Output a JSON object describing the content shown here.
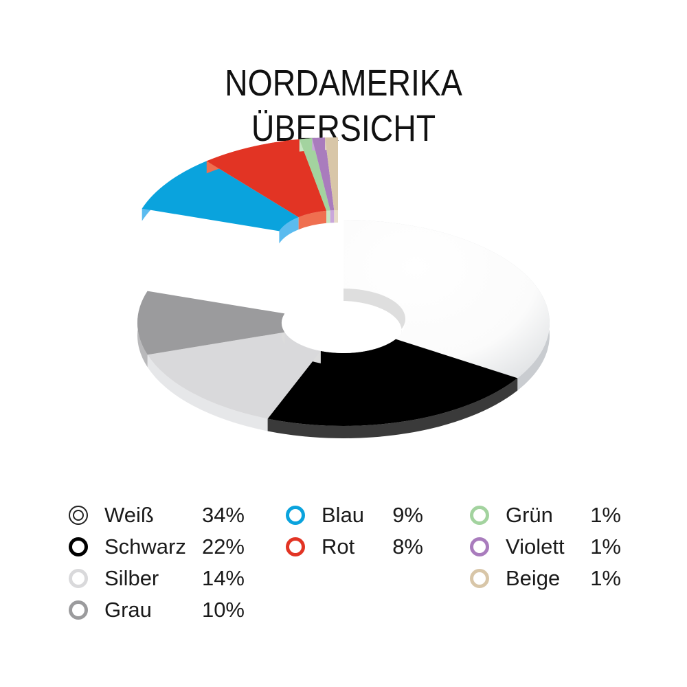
{
  "title": {
    "line1": "NORDAMERIKA",
    "line2": "ÜBERSICHT"
  },
  "legend": [
    {
      "label": "Weiß",
      "value": "34%",
      "color": "#ffffff",
      "stroke": "#222222",
      "style": "double-ring"
    },
    {
      "label": "Schwarz",
      "value": "22%",
      "color": "#000000",
      "stroke": "#000000",
      "style": "ring"
    },
    {
      "label": "Silber",
      "value": "14%",
      "color": "#d9d9db",
      "stroke": "#d9d9db",
      "style": "ring"
    },
    {
      "label": "Grau",
      "value": "10%",
      "color": "#9b9b9d",
      "stroke": "#9b9b9d",
      "style": "ring"
    },
    {
      "label": "Blau",
      "value": "9%",
      "color": "#0aa3dd",
      "stroke": "#0aa3dd",
      "style": "ring"
    },
    {
      "label": "Rot",
      "value": "8%",
      "color": "#e23424",
      "stroke": "#e23424",
      "style": "ring"
    },
    {
      "label": "Grün",
      "value": "1%",
      "color": "#a3d39f",
      "stroke": "#a3d39f",
      "style": "ring"
    },
    {
      "label": "Violett",
      "value": "1%",
      "color": "#a97cbd",
      "stroke": "#a97cbd",
      "style": "ring"
    },
    {
      "label": "Beige",
      "value": "1%",
      "color": "#d8c6a8",
      "stroke": "#d8c6a8",
      "style": "ring"
    }
  ],
  "chart_data": {
    "type": "pie",
    "subtype": "3d-donut",
    "title": "NORDAMERIKA ÜBERSICHT",
    "categories": [
      "Weiß",
      "Schwarz",
      "Silber",
      "Grau",
      "Blau",
      "Rot",
      "Grün",
      "Violett",
      "Beige"
    ],
    "values": [
      34,
      22,
      14,
      10,
      9,
      8,
      1,
      1,
      1
    ],
    "unit": "%",
    "colors": [
      "#ffffff",
      "#000000",
      "#d9d9db",
      "#9b9b9d",
      "#0aa3dd",
      "#e23424",
      "#a3d39f",
      "#a97cbd",
      "#d8c6a8"
    ],
    "exploded": [
      "Blau",
      "Rot",
      "Grün",
      "Violett",
      "Beige"
    ],
    "legend_position": "bottom",
    "xlabel": "",
    "ylabel": ""
  }
}
